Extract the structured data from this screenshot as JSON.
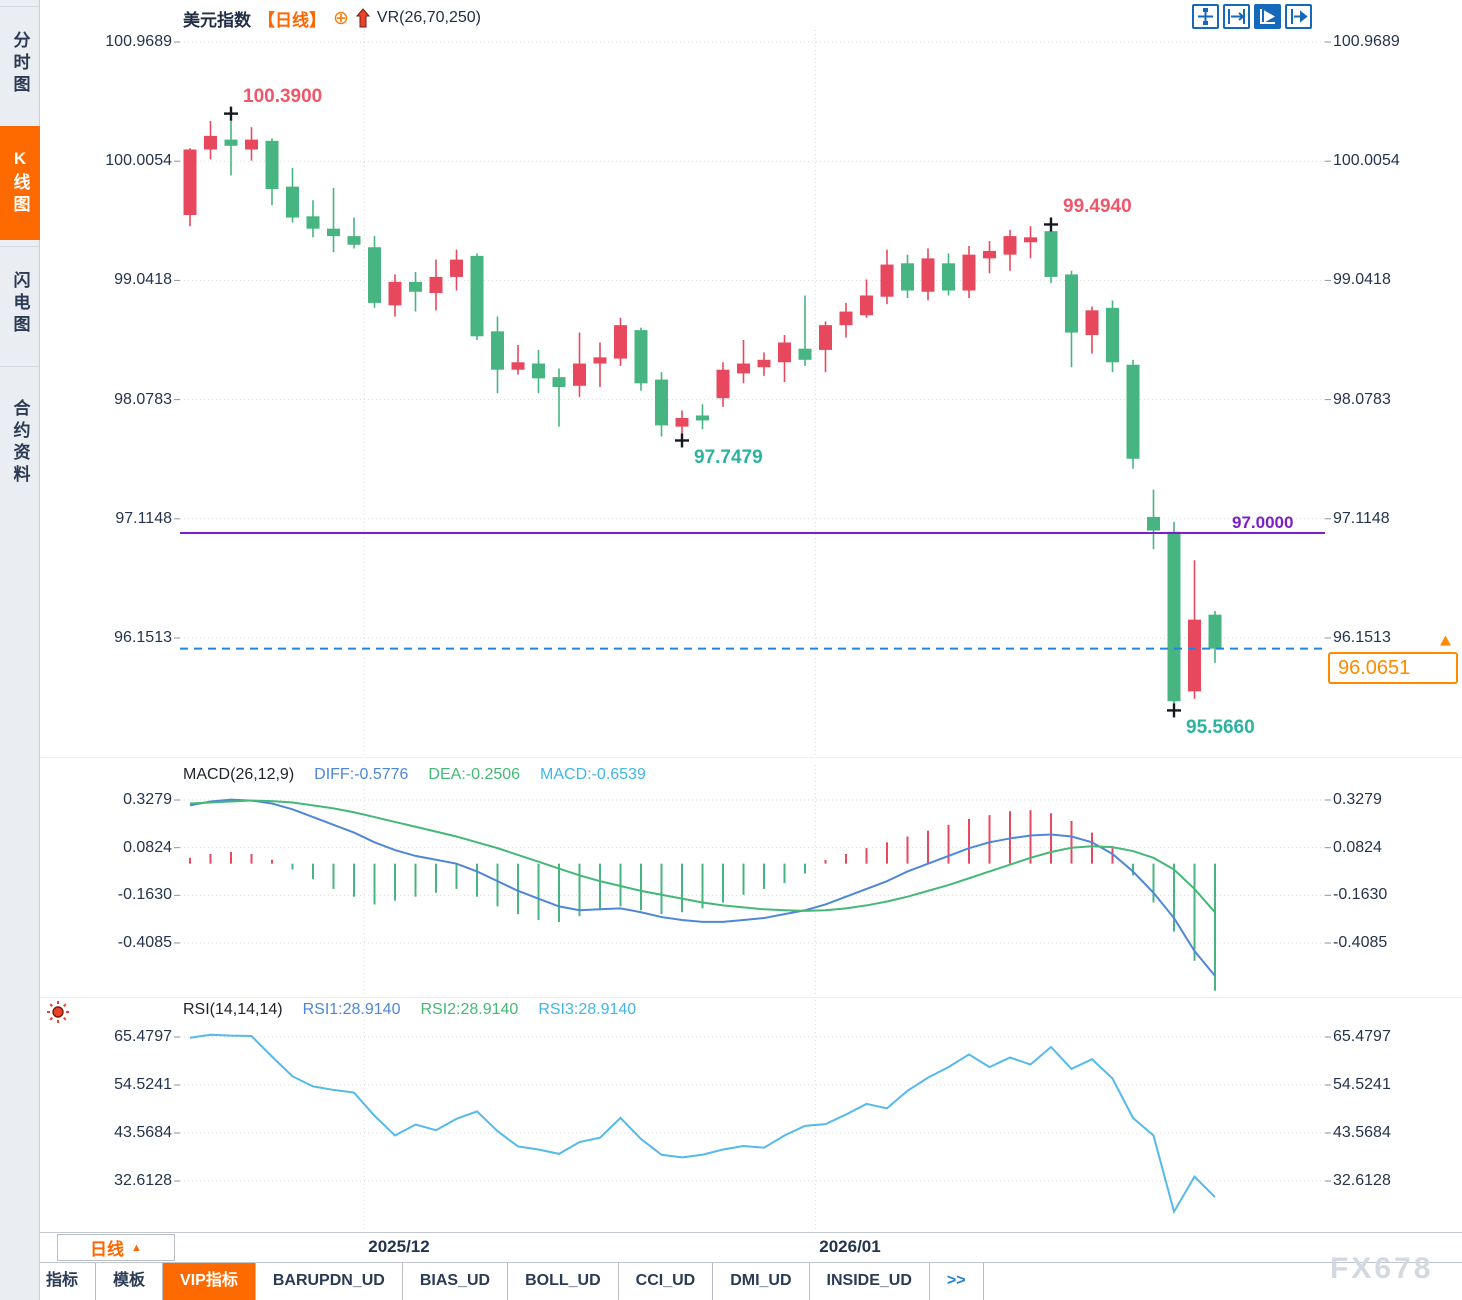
{
  "header": {
    "symbol": "美元指数",
    "period_tag": "【日线】",
    "plus_icon": "⊕",
    "indicator": "VR(26,70,250)"
  },
  "sidebar": {
    "items": [
      {
        "label": "分时图",
        "active": false
      },
      {
        "label": "K线图",
        "active": true
      },
      {
        "label": "闪电图",
        "active": false
      },
      {
        "label": "合约资料",
        "active": false
      }
    ]
  },
  "toolbar": {
    "icons": [
      {
        "name": "pan-crosshair-icon",
        "active": false
      },
      {
        "name": "zoom-horizontal-icon",
        "active": false
      },
      {
        "name": "auto-scale-icon",
        "active": true
      },
      {
        "name": "shift-right-icon",
        "active": false
      }
    ]
  },
  "macd_header": {
    "title": "MACD(26,12,9)",
    "items": [
      {
        "label": "DIFF:-0.5776",
        "color": "#4f87d6"
      },
      {
        "label": "DEA:-0.2506",
        "color": "#45b877"
      },
      {
        "label": "MACD:-0.6539",
        "color": "#41b6e6"
      }
    ]
  },
  "rsi_header": {
    "title": "RSI(14,14,14)",
    "items": [
      {
        "label": "RSI1:28.9140",
        "color": "#4f87d6"
      },
      {
        "label": "RSI2:28.9140",
        "color": "#45b877"
      },
      {
        "label": "RSI3:28.9140",
        "color": "#41b6e6"
      }
    ]
  },
  "period_selector": {
    "label": "日线",
    "arrow": "▲"
  },
  "bottom_tabs": {
    "items": [
      {
        "label": "指标",
        "active": false
      },
      {
        "label": "模板",
        "active": false
      },
      {
        "label": "VIP指标",
        "active": true
      },
      {
        "label": "BARUPDN_UD",
        "active": false
      },
      {
        "label": "BIAS_UD",
        "active": false
      },
      {
        "label": "BOLL_UD",
        "active": false
      },
      {
        "label": "CCI_UD",
        "active": false
      },
      {
        "label": "DMI_UD",
        "active": false
      },
      {
        "label": "INSIDE_UD",
        "active": false
      },
      {
        "label": ">>",
        "active": false
      }
    ]
  },
  "watermark": "FX678",
  "colors": {
    "accent_orange": "#ff6600",
    "navy_text": "#24344d",
    "candle_up_red": "#e8485e",
    "candle_down_green": "#47b581",
    "diff_blue": "#4f87d6",
    "dea_green": "#45b877",
    "macd_cyan": "#41b6e6",
    "rsi_line_blue": "#55b9ea",
    "hline_purple": "#7b1fc8",
    "dashed_line_blue": "#1f86e8",
    "price_box_orange": "#ff8a00",
    "annotation_red": "#f0566a",
    "annotation_teal": "#2cb3a0",
    "icon_blue": "#1669b8",
    "grid_gray": "#d9d9d9",
    "watermark_gray": "#d3d9e1"
  },
  "chart_data": {
    "type": "candlestick",
    "title": "美元指数 日线 (US Dollar Index, daily)",
    "panes": [
      "price",
      "MACD",
      "RSI"
    ],
    "legend_position": "top-left",
    "grid": "dotted",
    "main_y_ticks": [
      {
        "label": "100.9689",
        "value": 100.9689
      },
      {
        "label": "100.0054",
        "value": 100.0054
      },
      {
        "label": "99.0418",
        "value": 99.0418
      },
      {
        "label": "98.0783",
        "value": 98.0783
      },
      {
        "label": "97.1148",
        "value": 97.1148
      },
      {
        "label": "96.1513",
        "value": 96.1513
      }
    ],
    "macd_y_ticks": [
      {
        "label": "0.3279",
        "value": 0.3279
      },
      {
        "label": "0.0824",
        "value": 0.0824
      },
      {
        "label": "-0.1630",
        "value": -0.163
      },
      {
        "label": "-0.4085",
        "value": -0.4085
      }
    ],
    "rsi_y_ticks": [
      {
        "label": "65.4797",
        "value": 65.4797
      },
      {
        "label": "54.5241",
        "value": 54.5241
      },
      {
        "label": "43.5684",
        "value": 43.5684
      },
      {
        "label": "32.6128",
        "value": 32.6128
      }
    ],
    "x_gridlines": [
      {
        "label": "2025/12",
        "candle_index": 9
      },
      {
        "label": "2026/01",
        "candle_index": 31
      }
    ],
    "annotations": [
      {
        "text": "100.3900",
        "price": 100.39,
        "candle_index": 2,
        "placement": "above",
        "color_key": "annotation_red"
      },
      {
        "text": "99.4940",
        "price": 99.494,
        "candle_index": 42,
        "placement": "above",
        "color_key": "annotation_red"
      },
      {
        "text": "97.7479",
        "price": 97.7479,
        "candle_index": 24,
        "placement": "below",
        "color_key": "annotation_teal"
      },
      {
        "text": "95.5660",
        "price": 95.566,
        "candle_index": 48,
        "placement": "below",
        "color_key": "annotation_teal"
      }
    ],
    "horizontal_line": {
      "text": "97.0000",
      "value": 97.0
    },
    "current_price": {
      "text": "96.0651",
      "value": 96.0651
    },
    "candles_ohlc": [
      [
        99.57,
        100.11,
        99.48,
        100.1
      ],
      [
        100.1,
        100.33,
        100.02,
        100.21
      ],
      [
        100.18,
        100.39,
        99.89,
        100.13
      ],
      [
        100.1,
        100.28,
        100.01,
        100.18
      ],
      [
        100.17,
        100.19,
        99.65,
        99.78
      ],
      [
        99.8,
        99.95,
        99.51,
        99.55
      ],
      [
        99.56,
        99.69,
        99.39,
        99.46
      ],
      [
        99.46,
        99.79,
        99.27,
        99.4
      ],
      [
        99.4,
        99.55,
        99.3,
        99.33
      ],
      [
        99.31,
        99.4,
        98.82,
        98.86
      ],
      [
        98.84,
        99.09,
        98.75,
        99.03
      ],
      [
        99.03,
        99.11,
        98.79,
        98.95
      ],
      [
        98.94,
        99.21,
        98.8,
        99.07
      ],
      [
        99.07,
        99.29,
        98.96,
        99.21
      ],
      [
        99.24,
        99.26,
        98.56,
        98.59
      ],
      [
        98.63,
        98.75,
        98.13,
        98.32
      ],
      [
        98.32,
        98.52,
        98.28,
        98.38
      ],
      [
        98.37,
        98.48,
        98.13,
        98.25
      ],
      [
        98.26,
        98.33,
        97.86,
        98.18
      ],
      [
        98.19,
        98.62,
        98.1,
        98.37
      ],
      [
        98.37,
        98.54,
        98.18,
        98.42
      ],
      [
        98.41,
        98.74,
        98.35,
        98.68
      ],
      [
        98.64,
        98.66,
        98.15,
        98.21
      ],
      [
        98.24,
        98.3,
        97.78,
        97.87
      ],
      [
        97.86,
        97.99,
        97.7479,
        97.93
      ],
      [
        97.95,
        98.04,
        97.84,
        97.91
      ],
      [
        98.09,
        98.38,
        98.02,
        98.32
      ],
      [
        98.29,
        98.56,
        98.21,
        98.37
      ],
      [
        98.34,
        98.46,
        98.27,
        98.4
      ],
      [
        98.38,
        98.6,
        98.22,
        98.54
      ],
      [
        98.49,
        98.92,
        98.35,
        98.4
      ],
      [
        98.48,
        98.71,
        98.3,
        98.68
      ],
      [
        98.68,
        98.86,
        98.58,
        98.79
      ],
      [
        98.76,
        99.05,
        98.74,
        98.92
      ],
      [
        98.91,
        99.29,
        98.85,
        99.17
      ],
      [
        99.18,
        99.25,
        98.9,
        98.96
      ],
      [
        98.95,
        99.3,
        98.88,
        99.22
      ],
      [
        99.18,
        99.26,
        98.92,
        98.96
      ],
      [
        98.96,
        99.32,
        98.9,
        99.25
      ],
      [
        99.22,
        99.36,
        99.1,
        99.28
      ],
      [
        99.25,
        99.45,
        99.12,
        99.4
      ],
      [
        99.35,
        99.48,
        99.22,
        99.39
      ],
      [
        99.44,
        99.494,
        99.02,
        99.07
      ],
      [
        99.09,
        99.12,
        98.34,
        98.62
      ],
      [
        98.6,
        98.83,
        98.45,
        98.8
      ],
      [
        98.82,
        98.88,
        98.3,
        98.38
      ],
      [
        98.36,
        98.4,
        97.52,
        97.6
      ],
      [
        97.13,
        97.35,
        96.87,
        97.02
      ],
      [
        97.01,
        97.09,
        95.566,
        95.64
      ],
      [
        95.72,
        96.78,
        95.66,
        96.3
      ],
      [
        96.34,
        96.37,
        95.95,
        96.065
      ]
    ],
    "macd": {
      "hist": [
        0.03,
        0.05,
        0.06,
        0.05,
        0.02,
        -0.03,
        -0.08,
        -0.13,
        -0.17,
        -0.21,
        -0.19,
        -0.17,
        -0.15,
        -0.13,
        -0.17,
        -0.22,
        -0.26,
        -0.29,
        -0.3,
        -0.27,
        -0.24,
        -0.22,
        -0.24,
        -0.26,
        -0.25,
        -0.23,
        -0.2,
        -0.16,
        -0.13,
        -0.1,
        -0.05,
        0.02,
        0.05,
        0.08,
        0.11,
        0.14,
        0.17,
        0.2,
        0.23,
        0.25,
        0.27,
        0.275,
        0.26,
        0.22,
        0.16,
        0.08,
        -0.06,
        -0.2,
        -0.35,
        -0.5,
        -0.654
      ],
      "diff": [
        0.3,
        0.32,
        0.33,
        0.325,
        0.31,
        0.28,
        0.24,
        0.2,
        0.16,
        0.11,
        0.07,
        0.04,
        0.02,
        0.0,
        -0.04,
        -0.09,
        -0.14,
        -0.18,
        -0.22,
        -0.24,
        -0.235,
        -0.23,
        -0.25,
        -0.275,
        -0.29,
        -0.3,
        -0.3,
        -0.29,
        -0.28,
        -0.26,
        -0.24,
        -0.21,
        -0.17,
        -0.13,
        -0.09,
        -0.04,
        0.0,
        0.04,
        0.08,
        0.11,
        0.13,
        0.145,
        0.15,
        0.14,
        0.11,
        0.05,
        -0.04,
        -0.15,
        -0.28,
        -0.45,
        -0.5776
      ],
      "dea": [
        0.31,
        0.315,
        0.32,
        0.325,
        0.322,
        0.315,
        0.3,
        0.285,
        0.265,
        0.24,
        0.215,
        0.19,
        0.165,
        0.14,
        0.11,
        0.08,
        0.045,
        0.01,
        -0.025,
        -0.06,
        -0.09,
        -0.115,
        -0.14,
        -0.16,
        -0.18,
        -0.2,
        -0.215,
        -0.225,
        -0.235,
        -0.24,
        -0.243,
        -0.24,
        -0.23,
        -0.215,
        -0.195,
        -0.17,
        -0.14,
        -0.11,
        -0.075,
        -0.04,
        -0.005,
        0.03,
        0.06,
        0.082,
        0.09,
        0.085,
        0.065,
        0.03,
        -0.03,
        -0.13,
        -0.2506
      ]
    },
    "rsi": [
      65.3,
      66.0,
      65.8,
      65.7,
      61.0,
      56.5,
      54.2,
      53.4,
      52.8,
      47.5,
      43.0,
      45.5,
      44.2,
      46.8,
      48.5,
      44.0,
      40.5,
      39.8,
      38.8,
      41.5,
      42.5,
      47.0,
      42.2,
      38.6,
      38.0,
      38.6,
      39.8,
      40.6,
      40.2,
      43.0,
      45.2,
      45.6,
      47.8,
      50.2,
      49.2,
      53.2,
      56.2,
      58.6,
      61.5,
      58.6,
      60.8,
      59.2,
      63.2,
      58.2,
      60.4,
      56.0,
      47.0,
      43.0,
      25.6,
      33.6,
      28.914
    ]
  }
}
